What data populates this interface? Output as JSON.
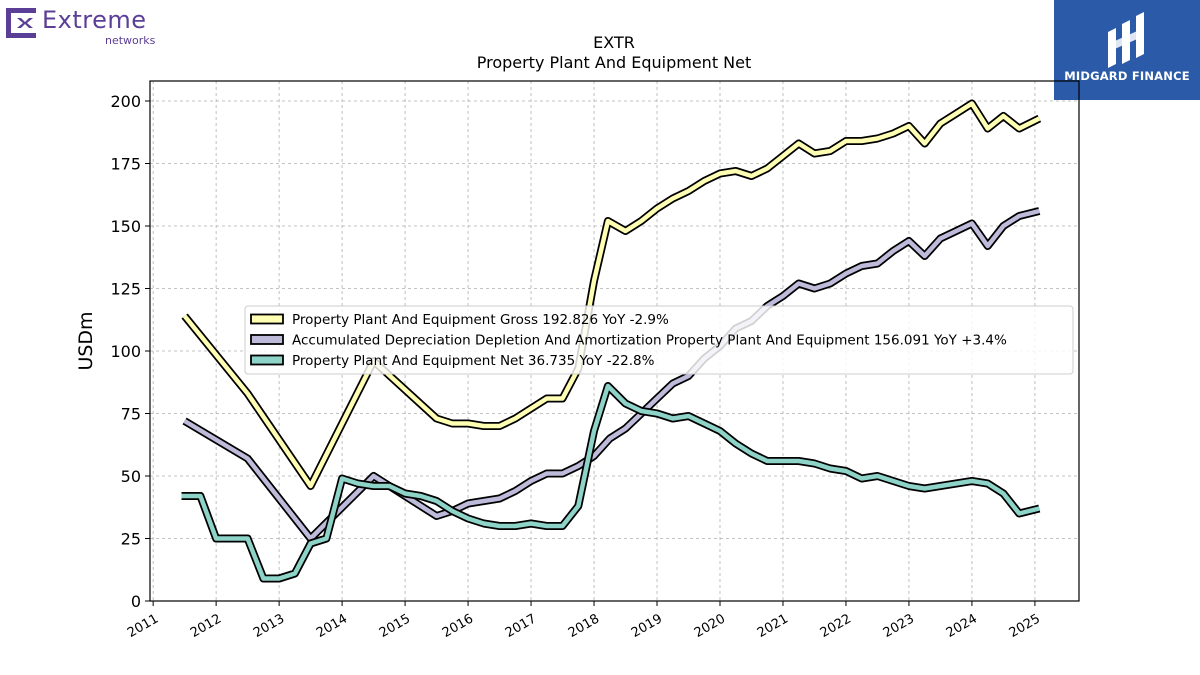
{
  "logos": {
    "left_brand": "Extreme",
    "left_sub": "networks",
    "right_brand": "MIDGARD FINANCE"
  },
  "colors": {
    "gross": "#ffffb3",
    "accum": "#bebada",
    "net": "#8dd3c7",
    "outline": "#000000",
    "extreme_purple": "#5b3e96",
    "midgard_blue": "#2b5aa8"
  },
  "chart_data": {
    "type": "line",
    "title": "EXTR",
    "subtitle": "Property Plant And Equipment Net",
    "ylabel": "USDm",
    "xlabel": "",
    "ylim": [
      0,
      208
    ],
    "xlim": [
      2010.95,
      2025.7
    ],
    "yticks": [
      0,
      25,
      50,
      75,
      100,
      125,
      150,
      175,
      200
    ],
    "xticks": [
      2011,
      2012,
      2013,
      2014,
      2015,
      2016,
      2017,
      2018,
      2019,
      2020,
      2021,
      2022,
      2023,
      2024,
      2025
    ],
    "grid": true,
    "legend_position": "center",
    "series": [
      {
        "name": "Property Plant And Equipment Gross",
        "legend": "Property Plant And Equipment Gross  192.826 YoY -2.9%",
        "color_key": "gross",
        "x": [
          2011.5,
          2012.5,
          2013.5,
          2014.5,
          2015.5,
          2015.75,
          2016.0,
          2016.25,
          2016.5,
          2016.75,
          2017.0,
          2017.25,
          2017.5,
          2017.75,
          2018.0,
          2018.22,
          2018.5,
          2018.75,
          2019.0,
          2019.25,
          2019.5,
          2019.75,
          2020.0,
          2020.25,
          2020.5,
          2020.75,
          2021.0,
          2021.25,
          2021.5,
          2021.75,
          2022.0,
          2022.25,
          2022.5,
          2022.75,
          2023.0,
          2023.25,
          2023.5,
          2023.75,
          2024.0,
          2024.25,
          2024.5,
          2024.75,
          2025.07
        ],
        "y": [
          114,
          83,
          46,
          96,
          73,
          71,
          71,
          70,
          70,
          73,
          77,
          81,
          81,
          93,
          128,
          152,
          148,
          152,
          157,
          161,
          164,
          168,
          171,
          172,
          170,
          173,
          178,
          183,
          179,
          180,
          184,
          184,
          185,
          187,
          190,
          183,
          191,
          195,
          199,
          189,
          194,
          189,
          193
        ]
      },
      {
        "name": "Accumulated Depreciation Depletion And Amortization Property Plant And Equipment",
        "legend": "Accumulated Depreciation Depletion And Amortization Property Plant And Equipment  156.091 YoY +3.4%",
        "color_key": "accum",
        "x": [
          2011.5,
          2012.5,
          2013.5,
          2014.5,
          2015.5,
          2015.75,
          2016.0,
          2016.25,
          2016.5,
          2016.75,
          2017.0,
          2017.25,
          2017.5,
          2017.75,
          2018.0,
          2018.25,
          2018.5,
          2018.75,
          2019.0,
          2019.25,
          2019.5,
          2019.75,
          2020.0,
          2020.25,
          2020.5,
          2020.75,
          2021.0,
          2021.25,
          2021.5,
          2021.75,
          2022.0,
          2022.25,
          2022.5,
          2022.75,
          2023.0,
          2023.25,
          2023.5,
          2023.75,
          2024.0,
          2024.25,
          2024.5,
          2024.75,
          2025.07
        ],
        "y": [
          72,
          57,
          25,
          50,
          34,
          36,
          39,
          40,
          41,
          44,
          48,
          51,
          51,
          54,
          58,
          65,
          69,
          75,
          81,
          87,
          90,
          97,
          102,
          109,
          112,
          118,
          122,
          127,
          125,
          127,
          131,
          134,
          135,
          140,
          144,
          138,
          145,
          148,
          151,
          142,
          150,
          154,
          156
        ]
      },
      {
        "name": "Property Plant And Equipment Net",
        "legend": "Property Plant And Equipment Net  36.735 YoY -22.8%",
        "color_key": "net",
        "x": [
          2011.45,
          2011.75,
          2012.0,
          2012.25,
          2012.5,
          2012.75,
          2013.0,
          2013.25,
          2013.5,
          2013.75,
          2014.0,
          2014.25,
          2014.5,
          2014.75,
          2015.0,
          2015.25,
          2015.5,
          2015.75,
          2016.0,
          2016.25,
          2016.5,
          2016.75,
          2017.0,
          2017.25,
          2017.5,
          2017.75,
          2018.0,
          2018.22,
          2018.5,
          2018.75,
          2019.0,
          2019.25,
          2019.5,
          2019.75,
          2020.0,
          2020.25,
          2020.5,
          2020.75,
          2021.0,
          2021.25,
          2021.5,
          2021.75,
          2022.0,
          2022.25,
          2022.5,
          2022.75,
          2023.0,
          2023.25,
          2023.5,
          2023.75,
          2024.0,
          2024.25,
          2024.5,
          2024.75,
          2025.07
        ],
        "y": [
          42,
          42,
          25,
          25,
          25,
          9,
          9,
          11,
          23,
          25,
          49,
          47,
          46,
          46,
          43,
          42,
          40,
          36,
          33,
          31,
          30,
          30,
          31,
          30,
          30,
          38,
          68,
          86,
          79,
          76,
          75,
          73,
          74,
          71,
          68,
          63,
          59,
          56,
          56,
          56,
          55,
          53,
          52,
          49,
          50,
          48,
          46,
          45,
          46,
          47,
          48,
          47,
          43,
          35,
          37
        ]
      }
    ]
  }
}
